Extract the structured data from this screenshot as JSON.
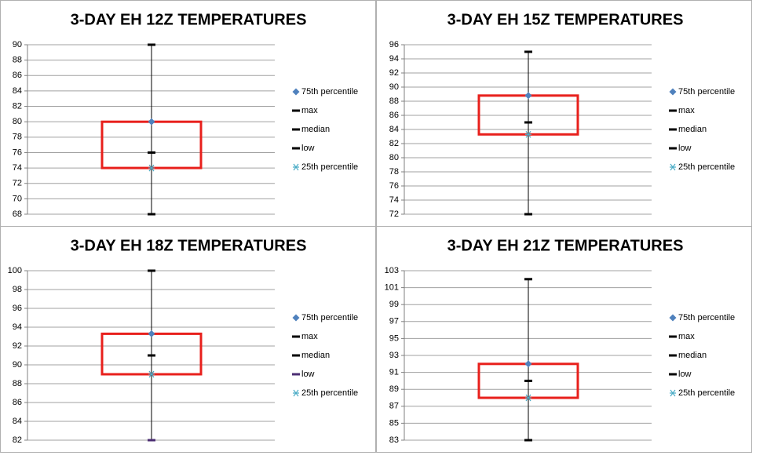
{
  "chart_data": [
    {
      "type": "box",
      "title": "3-DAY EH 12Z TEMPERATURES",
      "ylim": [
        68,
        90
      ],
      "yticks": [
        68,
        70,
        72,
        74,
        76,
        78,
        80,
        82,
        84,
        86,
        88,
        90
      ],
      "grid": true,
      "box_color": "#e8201c",
      "series": [
        {
          "name": "75th percentile",
          "marker": "diamond",
          "color": "#4f81bd",
          "values": [
            80
          ]
        },
        {
          "name": "max",
          "marker": "dash",
          "color": "#000000",
          "values": [
            90
          ]
        },
        {
          "name": "median",
          "marker": "dash",
          "color": "#000000",
          "values": [
            76
          ]
        },
        {
          "name": "low",
          "marker": "dash",
          "color": "#000000",
          "values": [
            68
          ]
        },
        {
          "name": "25th percentile",
          "marker": "asterisk",
          "color": "#4bacc6",
          "values": [
            74
          ]
        }
      ]
    },
    {
      "type": "box",
      "title": "3-DAY EH 15Z TEMPERATURES",
      "ylim": [
        72,
        96
      ],
      "yticks": [
        72,
        74,
        76,
        78,
        80,
        82,
        84,
        86,
        88,
        90,
        92,
        94,
        96
      ],
      "grid": true,
      "box_color": "#e8201c",
      "series": [
        {
          "name": "75th percentile",
          "marker": "diamond",
          "color": "#4f81bd",
          "values": [
            88.8
          ]
        },
        {
          "name": "max",
          "marker": "dash",
          "color": "#000000",
          "values": [
            95
          ]
        },
        {
          "name": "median",
          "marker": "dash",
          "color": "#000000",
          "values": [
            85
          ]
        },
        {
          "name": "low",
          "marker": "dash",
          "color": "#000000",
          "values": [
            72
          ]
        },
        {
          "name": "25th percentile",
          "marker": "asterisk",
          "color": "#4bacc6",
          "values": [
            83.3
          ]
        }
      ]
    },
    {
      "type": "box",
      "title": "3-DAY EH 18Z TEMPERATURES",
      "ylim": [
        82,
        100
      ],
      "yticks": [
        82,
        84,
        86,
        88,
        90,
        92,
        94,
        96,
        98,
        100
      ],
      "grid": true,
      "box_color": "#e8201c",
      "series": [
        {
          "name": "75th percentile",
          "marker": "diamond",
          "color": "#4f81bd",
          "values": [
            93.3
          ]
        },
        {
          "name": "max",
          "marker": "dash",
          "color": "#000000",
          "values": [
            100
          ]
        },
        {
          "name": "median",
          "marker": "dash",
          "color": "#000000",
          "values": [
            91
          ]
        },
        {
          "name": "low",
          "marker": "dash",
          "color": "#4b2d73",
          "values": [
            82
          ]
        },
        {
          "name": "25th percentile",
          "marker": "asterisk",
          "color": "#4bacc6",
          "values": [
            89
          ]
        }
      ]
    },
    {
      "type": "box",
      "title": "3-DAY EH 21Z TEMPERATURES",
      "ylim": [
        83,
        103
      ],
      "yticks": [
        83,
        85,
        87,
        89,
        91,
        93,
        95,
        97,
        99,
        101,
        103
      ],
      "grid": true,
      "box_color": "#e8201c",
      "series": [
        {
          "name": "75th percentile",
          "marker": "diamond",
          "color": "#4f81bd",
          "values": [
            92
          ]
        },
        {
          "name": "max",
          "marker": "dash",
          "color": "#000000",
          "values": [
            102
          ]
        },
        {
          "name": "median",
          "marker": "dash",
          "color": "#000000",
          "values": [
            90
          ]
        },
        {
          "name": "low",
          "marker": "dash",
          "color": "#000000",
          "values": [
            83
          ]
        },
        {
          "name": "25th percentile",
          "marker": "asterisk",
          "color": "#4bacc6",
          "values": [
            88
          ]
        }
      ]
    }
  ]
}
